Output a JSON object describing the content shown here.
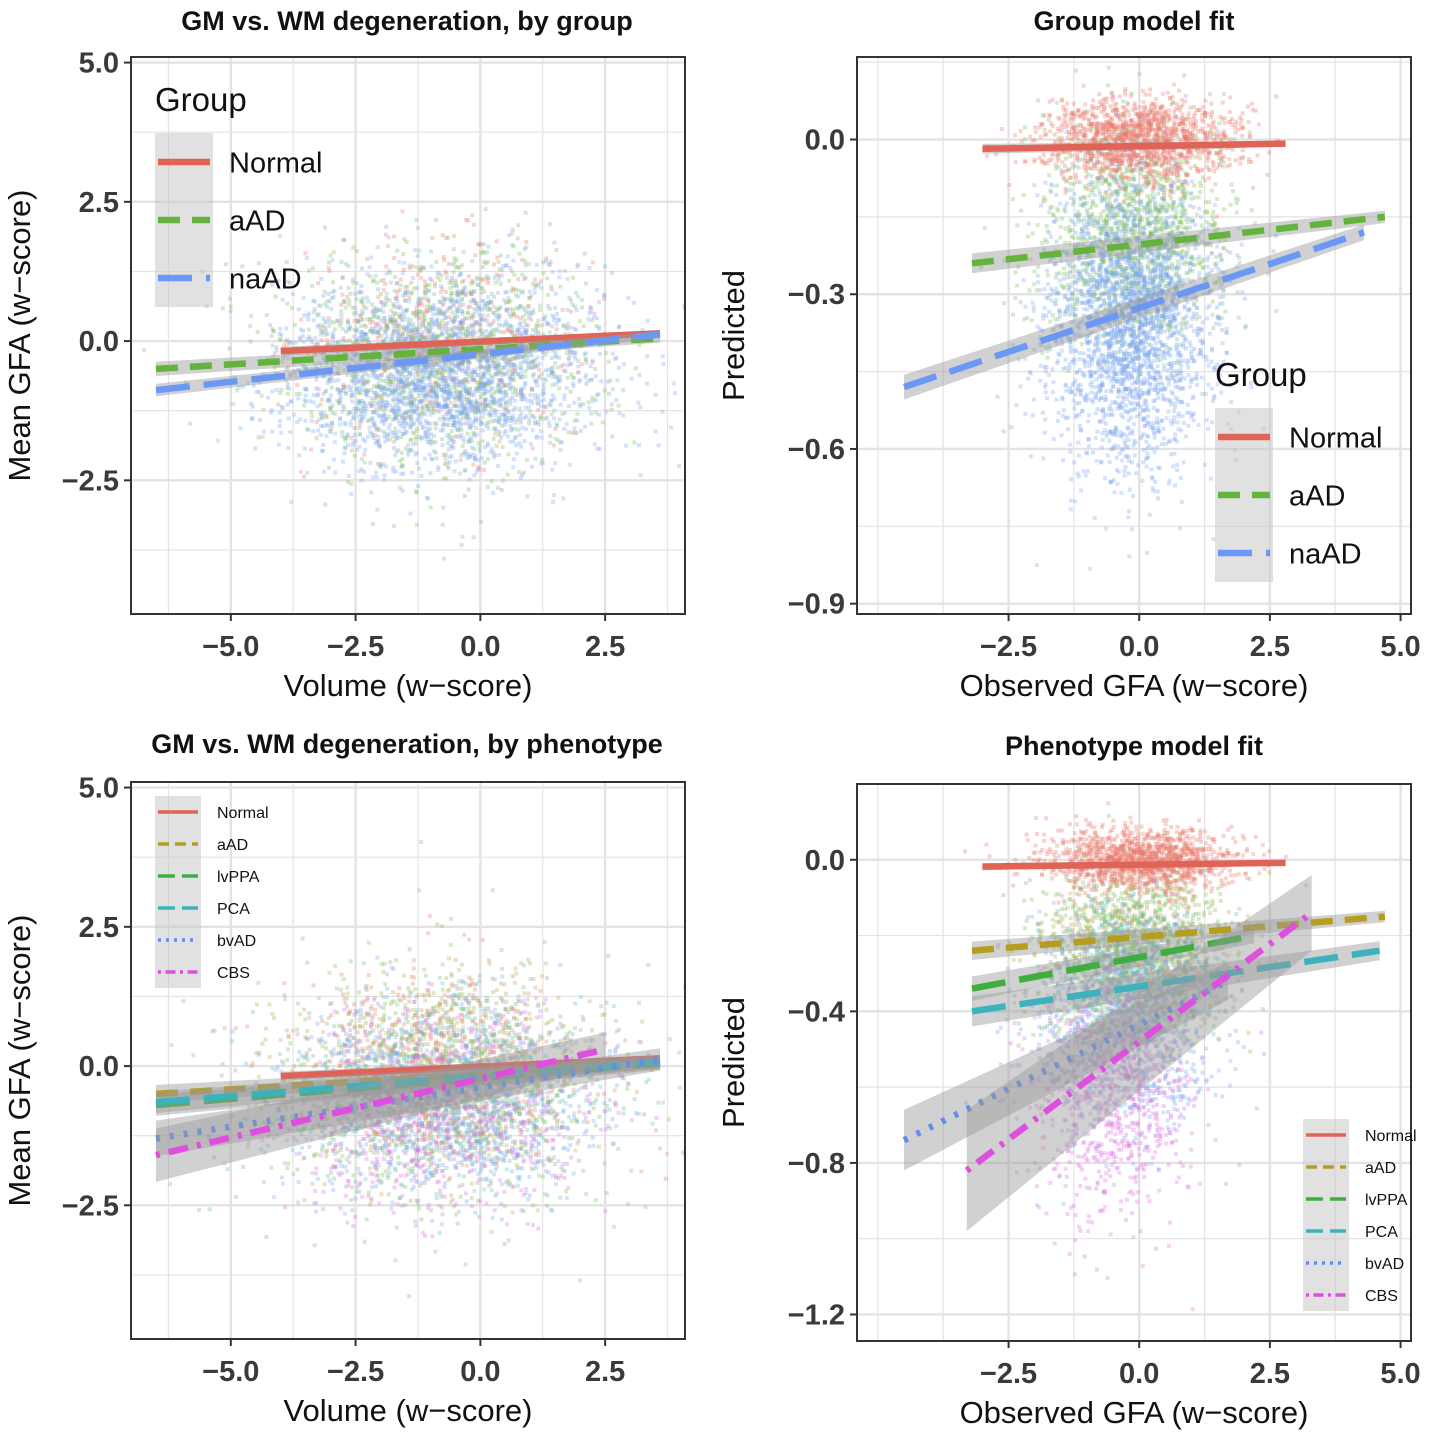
{
  "chart_data": [
    {
      "id": "p1",
      "type": "scatter",
      "title": "GM vs. WM degeneration, by group",
      "xlabel": "Volume (w−score)",
      "ylabel": "Mean GFA (w−score)",
      "xlim": [
        -7.0,
        4.1
      ],
      "ylim": [
        -4.9,
        5.1
      ],
      "xticks": [
        {
          "v": -5.0,
          "label": "−5.0"
        },
        {
          "v": -2.5,
          "label": "−2.5"
        },
        {
          "v": 0.0,
          "label": "0.0"
        },
        {
          "v": 2.5,
          "label": "2.5"
        }
      ],
      "yticks": [
        {
          "v": 5.0,
          "label": "5.0"
        },
        {
          "v": 2.5,
          "label": "2.5"
        },
        {
          "v": 0.0,
          "label": "0.0"
        },
        {
          "v": -2.5,
          "label": "−2.5"
        }
      ],
      "legend": {
        "title": "Group",
        "position": "top-left",
        "size": "large"
      },
      "scatter": [
        {
          "name": "Normal",
          "color": "#E8786E",
          "n": 500,
          "cx": -0.8,
          "cy": 0.0,
          "sx": 1.4,
          "sy": 0.85
        },
        {
          "name": "aAD",
          "color": "#7CBF5A",
          "n": 1100,
          "cx": -0.8,
          "cy": -0.3,
          "sx": 1.6,
          "sy": 1.0
        },
        {
          "name": "naAD",
          "color": "#7AA5F0",
          "n": 2200,
          "cx": -0.8,
          "cy": -0.6,
          "sx": 1.6,
          "sy": 0.85
        }
      ],
      "series": [
        {
          "name": "Normal",
          "color": "#E06358",
          "dash": "solid",
          "x": [
            -4.0,
            3.6
          ],
          "y": [
            -0.18,
            0.14
          ],
          "band": 0.05
        },
        {
          "name": "aAD",
          "color": "#63B33D",
          "dash": "dashed",
          "x": [
            -6.5,
            3.6
          ],
          "y": [
            -0.5,
            0.05
          ],
          "band": 0.08
        },
        {
          "name": "naAD",
          "color": "#6A98F4",
          "dash": "longdash",
          "x": [
            -6.5,
            3.6
          ],
          "y": [
            -0.88,
            0.12
          ],
          "band": 0.07
        }
      ]
    },
    {
      "id": "p2",
      "type": "scatter",
      "title": "Group model fit",
      "xlabel": "Observed GFA (w−score)",
      "ylabel": "Predicted",
      "xlim": [
        -5.4,
        5.2
      ],
      "ylim": [
        -0.92,
        0.16
      ],
      "xticks": [
        {
          "v": -2.5,
          "label": "−2.5"
        },
        {
          "v": 0.0,
          "label": "0.0"
        },
        {
          "v": 2.5,
          "label": "2.5"
        },
        {
          "v": 5.0,
          "label": "5.0"
        }
      ],
      "yticks": [
        {
          "v": 0.0,
          "label": "0.0"
        },
        {
          "v": -0.3,
          "label": "−0.3"
        },
        {
          "v": -0.6,
          "label": "−0.6"
        },
        {
          "v": -0.9,
          "label": "−0.9"
        }
      ],
      "legend": {
        "title": "Group",
        "position": "bottom-right",
        "size": "large"
      },
      "scatter": [
        {
          "name": "aAD",
          "color": "#7CBF5A",
          "n": 1200,
          "cx": -0.1,
          "cy": -0.18,
          "sx": 0.85,
          "sy": 0.11
        },
        {
          "name": "naAD",
          "color": "#7AA5F0",
          "n": 2400,
          "cx": -0.2,
          "cy": -0.35,
          "sx": 0.8,
          "sy": 0.14
        },
        {
          "name": "Normal",
          "color": "#E8786E",
          "n": 1400,
          "cx": 0.0,
          "cy": 0.0,
          "sx": 0.9,
          "sy": 0.04
        }
      ],
      "series": [
        {
          "name": "Normal",
          "color": "#E06358",
          "dash": "solid",
          "x": [
            -3.0,
            2.8
          ],
          "y": [
            -0.018,
            -0.008
          ],
          "band": 0.006
        },
        {
          "name": "aAD",
          "color": "#63B33D",
          "dash": "dashed",
          "x": [
            -3.2,
            4.7
          ],
          "y": [
            -0.24,
            -0.15
          ],
          "band": 0.012
        },
        {
          "name": "naAD",
          "color": "#6A98F4",
          "dash": "longdash",
          "x": [
            -4.5,
            4.3
          ],
          "y": [
            -0.48,
            -0.18
          ],
          "band": 0.015
        }
      ]
    },
    {
      "id": "p3",
      "type": "scatter",
      "title": "GM vs. WM degeneration, by phenotype",
      "xlabel": "Volume (w−score)",
      "ylabel": "Mean GFA (w−score)",
      "xlim": [
        -7.0,
        4.1
      ],
      "ylim": [
        -4.9,
        5.1
      ],
      "xticks": [
        {
          "v": -5.0,
          "label": "−5.0"
        },
        {
          "v": -2.5,
          "label": "−2.5"
        },
        {
          "v": 0.0,
          "label": "0.0"
        },
        {
          "v": 2.5,
          "label": "2.5"
        }
      ],
      "yticks": [
        {
          "v": 5.0,
          "label": "5.0"
        },
        {
          "v": 2.5,
          "label": "2.5"
        },
        {
          "v": 0.0,
          "label": "0.0"
        },
        {
          "v": -2.5,
          "label": "−2.5"
        }
      ],
      "legend": {
        "title": "",
        "position": "top-left",
        "size": "small"
      },
      "scatter": [
        {
          "name": "Normal",
          "color": "#E8786E",
          "n": 500,
          "cx": -0.8,
          "cy": 0.0,
          "sx": 1.4,
          "sy": 0.85
        },
        {
          "name": "aAD",
          "color": "#B8A850",
          "n": 800,
          "cx": -0.8,
          "cy": -0.2,
          "sx": 1.6,
          "sy": 1.0
        },
        {
          "name": "lvPPA",
          "color": "#7CBF5A",
          "n": 700,
          "cx": -0.8,
          "cy": -0.4,
          "sx": 1.6,
          "sy": 1.0
        },
        {
          "name": "PCA",
          "color": "#5FBFC8",
          "n": 700,
          "cx": -0.8,
          "cy": -0.5,
          "sx": 1.6,
          "sy": 0.9
        },
        {
          "name": "bvAD",
          "color": "#7AA5F0",
          "n": 900,
          "cx": -0.8,
          "cy": -0.6,
          "sx": 1.6,
          "sy": 0.9
        },
        {
          "name": "CBS",
          "color": "#E070E0",
          "n": 700,
          "cx": -0.9,
          "cy": -0.8,
          "sx": 1.5,
          "sy": 0.9
        }
      ],
      "series": [
        {
          "name": "Normal",
          "color": "#E06358",
          "dash": "solid",
          "x": [
            -4.0,
            3.6
          ],
          "y": [
            -0.18,
            0.14
          ],
          "band": 0.05
        },
        {
          "name": "aAD",
          "color": "#B59E1F",
          "dash": "dashed",
          "x": [
            -6.5,
            3.6
          ],
          "y": [
            -0.5,
            0.05
          ],
          "band": 0.1
        },
        {
          "name": "lvPPA",
          "color": "#3FAE3F",
          "dash": "longdash",
          "x": [
            -6.5,
            3.6
          ],
          "y": [
            -0.7,
            0.05
          ],
          "band": 0.12
        },
        {
          "name": "PCA",
          "color": "#3BB2BC",
          "dash": "longdash",
          "x": [
            -6.5,
            3.6
          ],
          "y": [
            -0.65,
            0.08
          ],
          "band": 0.12
        },
        {
          "name": "bvAD",
          "color": "#5F8EF0",
          "dash": "dotted",
          "x": [
            -6.5,
            3.6
          ],
          "y": [
            -1.3,
            0.12
          ],
          "band": 0.2
        },
        {
          "name": "CBS",
          "color": "#DE4FDE",
          "dash": "dotdash",
          "x": [
            -6.5,
            2.5
          ],
          "y": [
            -1.6,
            0.3
          ],
          "band": 0.3
        }
      ]
    },
    {
      "id": "p4",
      "type": "scatter",
      "title": "Phenotype model fit",
      "xlabel": "Observed GFA (w−score)",
      "ylabel": "Predicted",
      "xlim": [
        -5.4,
        5.2
      ],
      "ylim": [
        -1.27,
        0.2
      ],
      "xticks": [
        {
          "v": -2.5,
          "label": "−2.5"
        },
        {
          "v": 0.0,
          "label": "0.0"
        },
        {
          "v": 2.5,
          "label": "2.5"
        },
        {
          "v": 5.0,
          "label": "5.0"
        }
      ],
      "yticks": [
        {
          "v": 0.0,
          "label": "0.0"
        },
        {
          "v": -0.4,
          "label": "−0.4"
        },
        {
          "v": -0.8,
          "label": "−0.8"
        },
        {
          "v": -1.2,
          "label": "−1.2"
        }
      ],
      "legend": {
        "title": "",
        "position": "bottom-right",
        "size": "small"
      },
      "scatter": [
        {
          "name": "aAD",
          "color": "#B8A850",
          "n": 700,
          "cx": 0.0,
          "cy": -0.22,
          "sx": 0.85,
          "sy": 0.1
        },
        {
          "name": "lvPPA",
          "color": "#7CBF5A",
          "n": 800,
          "cx": -0.2,
          "cy": -0.25,
          "sx": 0.85,
          "sy": 0.12
        },
        {
          "name": "PCA",
          "color": "#5FBFC8",
          "n": 500,
          "cx": -0.2,
          "cy": -0.3,
          "sx": 0.8,
          "sy": 0.1
        },
        {
          "name": "bvAD",
          "color": "#7AA5F0",
          "n": 900,
          "cx": -0.3,
          "cy": -0.45,
          "sx": 0.9,
          "sy": 0.15
        },
        {
          "name": "CBS",
          "color": "#E070E0",
          "n": 800,
          "cx": -0.5,
          "cy": -0.6,
          "sx": 0.75,
          "sy": 0.18
        },
        {
          "name": "Normal",
          "color": "#E8786E",
          "n": 1300,
          "cx": 0.0,
          "cy": 0.0,
          "sx": 0.9,
          "sy": 0.04
        }
      ],
      "series": [
        {
          "name": "Normal",
          "color": "#E06358",
          "dash": "solid",
          "x": [
            -3.0,
            2.8
          ],
          "y": [
            -0.018,
            -0.008
          ],
          "band": 0.006
        },
        {
          "name": "aAD",
          "color": "#B59E1F",
          "dash": "dashed",
          "x": [
            -3.2,
            4.7
          ],
          "y": [
            -0.24,
            -0.15
          ],
          "band": 0.015
        },
        {
          "name": "lvPPA",
          "color": "#3FAE3F",
          "dash": "longdash",
          "x": [
            -3.2,
            2.2
          ],
          "y": [
            -0.34,
            -0.2
          ],
          "band": 0.02
        },
        {
          "name": "PCA",
          "color": "#3BB2BC",
          "dash": "longdash",
          "x": [
            -3.2,
            4.6
          ],
          "y": [
            -0.4,
            -0.24
          ],
          "band": 0.025
        },
        {
          "name": "bvAD",
          "color": "#5F8EF0",
          "dash": "dotted",
          "x": [
            -4.5,
            1.7
          ],
          "y": [
            -0.74,
            -0.32
          ],
          "band": 0.05
        },
        {
          "name": "CBS",
          "color": "#DE4FDE",
          "dash": "dotdash",
          "x": [
            -3.3,
            3.3
          ],
          "y": [
            -0.82,
            -0.14
          ],
          "band": 0.1
        }
      ]
    }
  ]
}
